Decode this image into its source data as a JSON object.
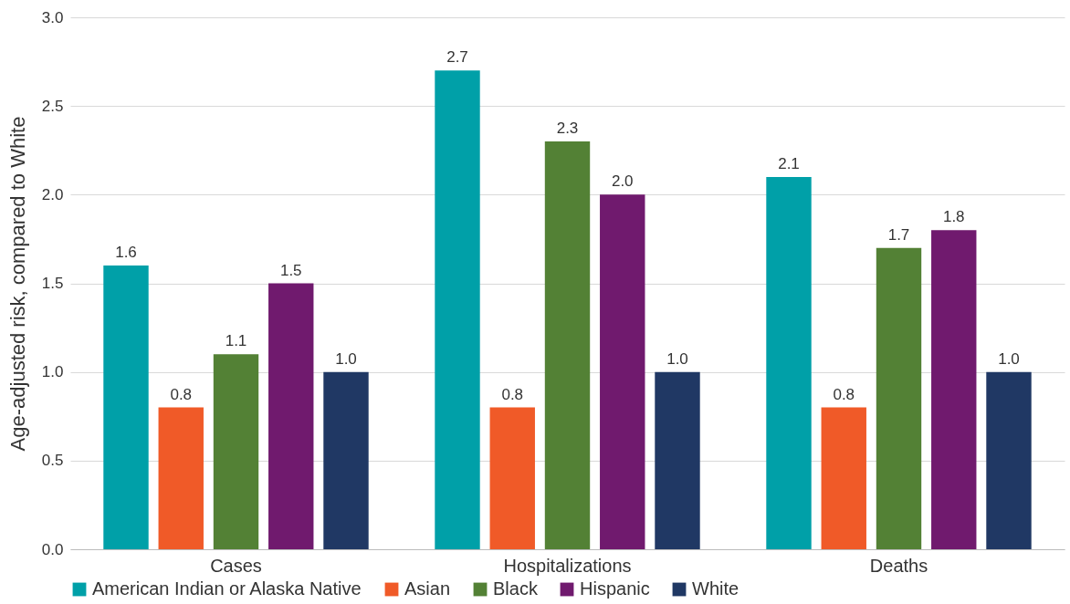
{
  "chart_data": {
    "type": "bar",
    "ylabel": "Age-adjusted risk, compared to White",
    "categories": [
      "Cases",
      "Hospitalizations",
      "Deaths"
    ],
    "series": [
      {
        "name": "American Indian or Alaska Native",
        "color": "#00a0a8",
        "values": [
          1.6,
          2.7,
          2.1
        ],
        "value_labels": [
          "1.6",
          "2.7",
          "2.1"
        ]
      },
      {
        "name": "Asian",
        "color": "#f05a28",
        "values": [
          0.8,
          0.8,
          0.8
        ],
        "value_labels": [
          "0.8",
          "0.8",
          "0.8"
        ]
      },
      {
        "name": "Black",
        "color": "#538135",
        "values": [
          1.1,
          2.3,
          1.7
        ],
        "value_labels": [
          "1.1",
          "2.3",
          "1.7"
        ]
      },
      {
        "name": "Hispanic",
        "color": "#701a6e",
        "values": [
          1.5,
          2.0,
          1.8
        ],
        "value_labels": [
          "1.5",
          "2.0",
          "1.8"
        ]
      },
      {
        "name": "White",
        "color": "#203864",
        "values": [
          1.0,
          1.0,
          1.0
        ],
        "value_labels": [
          "1.0",
          "1.0",
          "1.0"
        ]
      }
    ],
    "ylim": [
      0,
      3
    ],
    "yticks": [
      {
        "value": 0,
        "label": "0.0"
      },
      {
        "value": 0.5,
        "label": "0.5"
      },
      {
        "value": 1,
        "label": "1.0"
      },
      {
        "value": 1.5,
        "label": "1.5"
      },
      {
        "value": 2,
        "label": "2.0"
      },
      {
        "value": 2.5,
        "label": "2.5"
      },
      {
        "value": 3,
        "label": "3.0"
      }
    ],
    "grid": "y",
    "legend": "bottom"
  }
}
